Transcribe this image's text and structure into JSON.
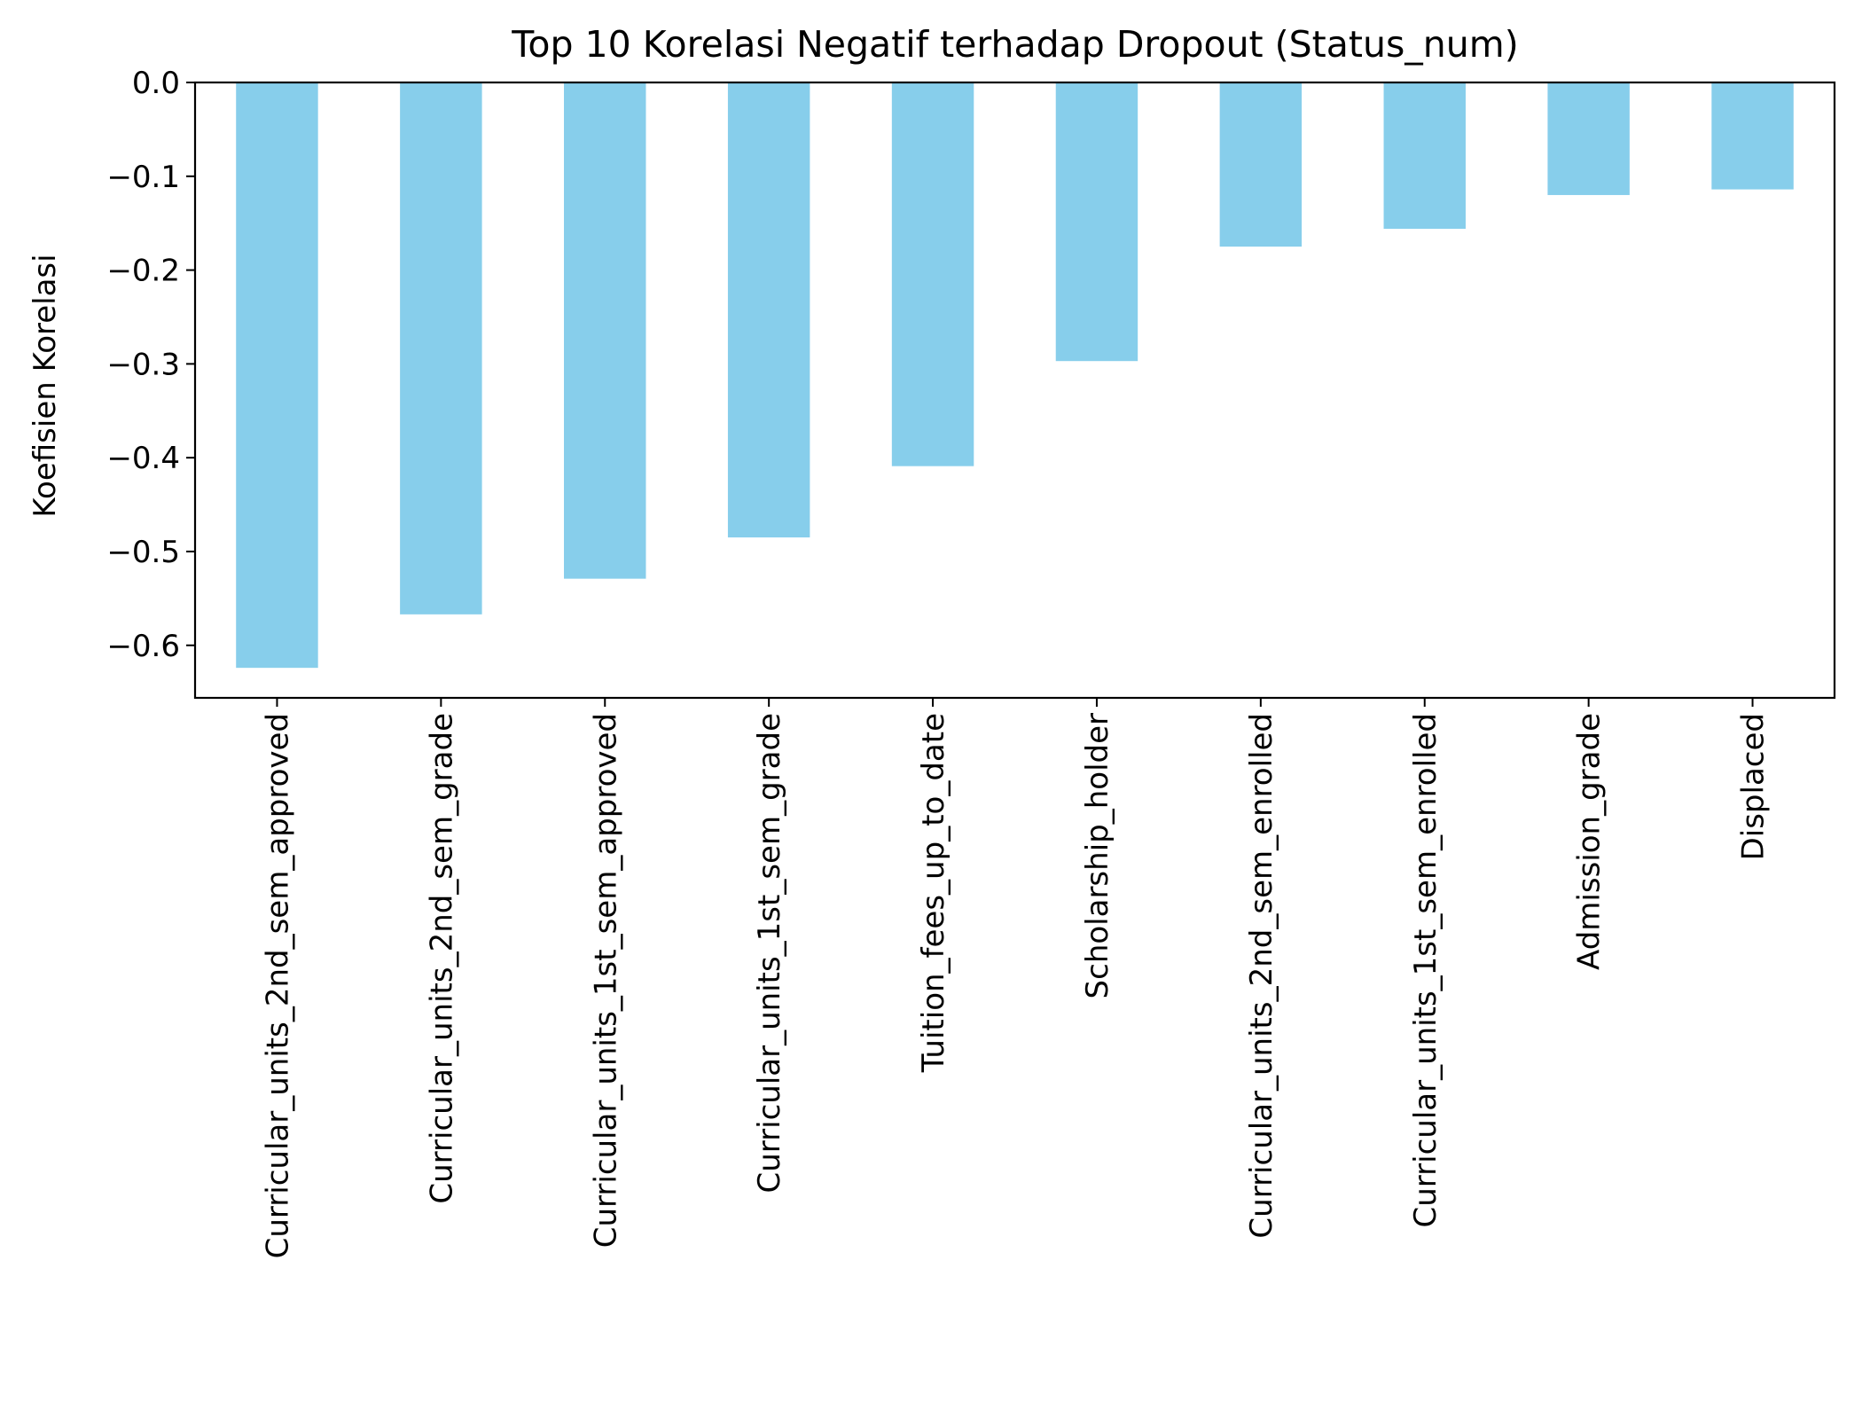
{
  "chart_data": {
    "type": "bar",
    "title": "Top 10 Korelasi Negatif terhadap Dropout (Status_num)",
    "xlabel": "",
    "ylabel": "Koefisien Korelasi",
    "categories": [
      "Curricular_units_2nd_sem_approved",
      "Curricular_units_2nd_sem_grade",
      "Curricular_units_1st_sem_approved",
      "Curricular_units_1st_sem_grade",
      "Tuition_fees_up_to_date",
      "Scholarship_holder",
      "Curricular_units_2nd_sem_enrolled",
      "Curricular_units_1st_sem_enrolled",
      "Admission_grade",
      "Displaced"
    ],
    "values": [
      -0.624,
      -0.567,
      -0.529,
      -0.485,
      -0.409,
      -0.297,
      -0.175,
      -0.156,
      -0.12,
      -0.114
    ],
    "ylim": [
      -0.656,
      0.0
    ],
    "yticks": [
      0.0,
      -0.1,
      -0.2,
      -0.3,
      -0.4,
      -0.5,
      -0.6
    ],
    "ytick_labels": [
      "0.0",
      "−0.1",
      "−0.2",
      "−0.3",
      "−0.4",
      "−0.5",
      "−0.6"
    ],
    "bar_color": "#87ceeb",
    "grid": false,
    "legend": "none"
  }
}
